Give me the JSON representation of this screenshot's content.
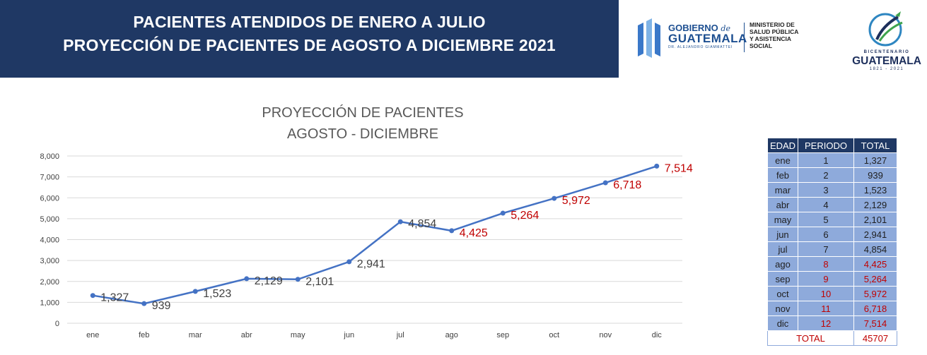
{
  "header": {
    "line1": "PACIENTES ATENDIDOS DE ENERO A JULIO",
    "line2": "PROYECCIÓN DE PACIENTES DE AGOSTO A DICIEMBRE 2021"
  },
  "logo_gobierno": {
    "text_gobierno": "GOBIERNO",
    "text_de": "de",
    "text_guatemala": "GUATEMALA",
    "text_president": "DR. ALEJANDRO GIAMMATTEI",
    "ministry_lines": [
      "MINISTERIO DE",
      "SALUD PÚBLICA",
      "Y ASISTENCIA",
      "SOCIAL"
    ]
  },
  "logo_bicentenario": {
    "line1": "BICENTENARIO",
    "line2": "GUATEMALA",
    "line3": "1821 - 2021"
  },
  "colors": {
    "banner": "#1f3864",
    "line": "#4472c4",
    "projection_label": "#c00000",
    "table_cell": "#8eaadb"
  },
  "chart_data": {
    "type": "line",
    "title": [
      "PROYECCIÓN DE PACIENTES",
      "AGOSTO - DICIEMBRE"
    ],
    "xlabel": "",
    "ylabel": "",
    "categories": [
      "ene",
      "feb",
      "mar",
      "abr",
      "may",
      "jun",
      "jul",
      "ago",
      "sep",
      "oct",
      "nov",
      "dic"
    ],
    "series": [
      {
        "values": [
          1327,
          939,
          1523,
          2129,
          2101,
          2941,
          4854,
          4425,
          5264,
          5972,
          6718,
          7514
        ],
        "labels": [
          "1,327",
          "939",
          "1,523",
          "2,129",
          "2,101",
          "2,941",
          "4,854",
          "4,425",
          "5,264",
          "5,972",
          "6,718",
          "7,514"
        ]
      }
    ],
    "projected_from_index": 7,
    "ylim": [
      0,
      8000
    ],
    "yticks": [
      0,
      1000,
      2000,
      3000,
      4000,
      5000,
      6000,
      7000,
      8000
    ],
    "ytick_labels": [
      "0",
      "1,000",
      "2,000",
      "3,000",
      "4,000",
      "5,000",
      "6,000",
      "7,000",
      "8,000"
    ],
    "grid": true,
    "legend": "none"
  },
  "table": {
    "headers": [
      "EDAD",
      "PERIODO",
      "TOTAL"
    ],
    "rows": [
      {
        "edad": "ene",
        "periodo": "1",
        "total": "1,327"
      },
      {
        "edad": "feb",
        "periodo": "2",
        "total": "939"
      },
      {
        "edad": "mar",
        "periodo": "3",
        "total": "1,523"
      },
      {
        "edad": "abr",
        "periodo": "4",
        "total": "2,129"
      },
      {
        "edad": "may",
        "periodo": "5",
        "total": "2,101"
      },
      {
        "edad": "jun",
        "periodo": "6",
        "total": "2,941"
      },
      {
        "edad": "jul",
        "periodo": "7",
        "total": "4,854"
      },
      {
        "edad": "ago",
        "periodo": "8",
        "total": "4,425"
      },
      {
        "edad": "sep",
        "periodo": "9",
        "total": "5,264"
      },
      {
        "edad": "oct",
        "periodo": "10",
        "total": "5,972"
      },
      {
        "edad": "nov",
        "periodo": "11",
        "total": "6,718"
      },
      {
        "edad": "dic",
        "periodo": "12",
        "total": "7,514"
      }
    ],
    "total_label": "TOTAL",
    "total_value": "45707"
  }
}
